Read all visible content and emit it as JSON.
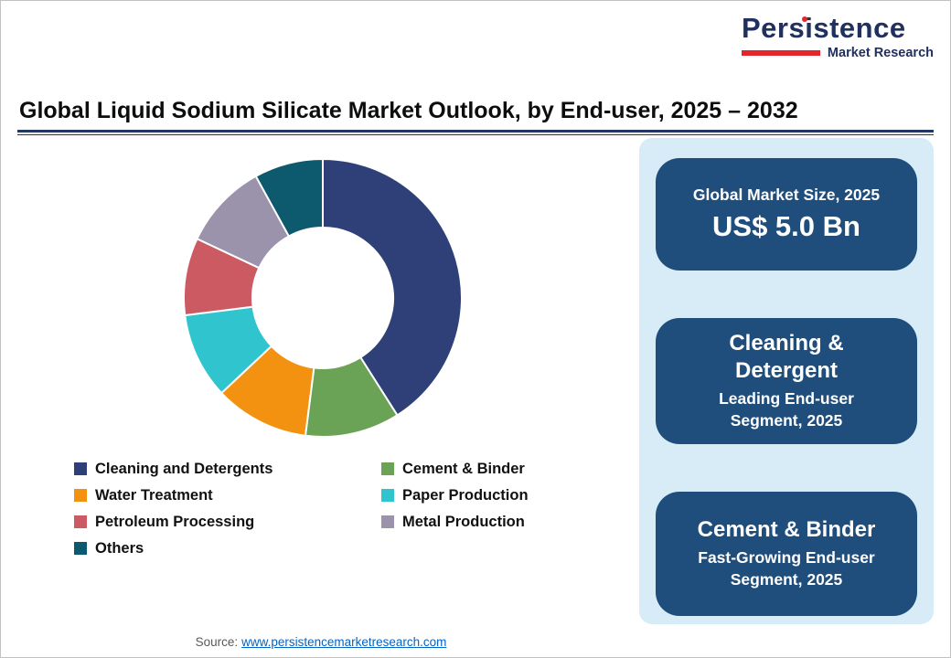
{
  "logo": {
    "name": "Persistence",
    "subtitle": "Market Research",
    "brand_navy": "#20305f",
    "brand_red": "#e4252c"
  },
  "title": "Global Liquid Sodium Silicate Market Outlook, by End-user, 2025 – 2032",
  "chart_data": {
    "type": "pie",
    "subtype": "donut",
    "title": "Global Liquid Sodium Silicate Market Outlook, by End-user, 2025 – 2032",
    "categories": [
      "Cleaning and Detergents",
      "Cement & Binder",
      "Water Treatment",
      "Paper Production",
      "Petroleum Processing",
      "Metal Production",
      "Others"
    ],
    "values": [
      41,
      11,
      11,
      10,
      9,
      10,
      8
    ],
    "units": "percent share (estimated from arc angles)",
    "colors": [
      "#2e4077",
      "#6ba356",
      "#f39111",
      "#30c5ce",
      "#cc5a63",
      "#9b93ab",
      "#0d5a6e"
    ],
    "start_angle_deg": 0,
    "clockwise": true,
    "inner_radius_ratio": 0.5,
    "legend_position": "below",
    "legend": [
      {
        "label": "Cleaning and Detergents",
        "color": "#2e4077"
      },
      {
        "label": "Cement & Binder",
        "color": "#6ba356"
      },
      {
        "label": "Water Treatment",
        "color": "#f39111"
      },
      {
        "label": "Paper Production",
        "color": "#30c5ce"
      },
      {
        "label": "Petroleum Processing",
        "color": "#cc5a63"
      },
      {
        "label": "Metal Production",
        "color": "#9b93ab"
      },
      {
        "label": "Others",
        "color": "#0d5a6e"
      }
    ]
  },
  "panel": {
    "background": "#d8ecf8",
    "card_color": "#1f4e7c",
    "cards": [
      {
        "label": "Global Market Size, 2025",
        "value": "US$ 5.0 Bn"
      },
      {
        "title": "Cleaning &\nDetergent",
        "subtitle": "Leading End-user\nSegment, 2025"
      },
      {
        "title": "Cement & Binder",
        "subtitle": "Fast-Growing End-user\nSegment, 2025"
      }
    ]
  },
  "footer": {
    "source_label": "Source:",
    "source_link": "www.persistencemarketresearch.com"
  }
}
